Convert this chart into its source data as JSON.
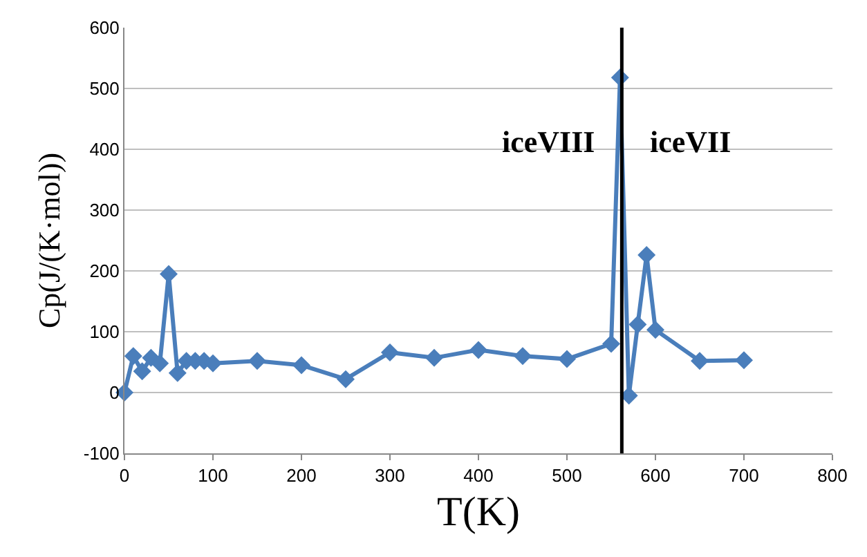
{
  "chart_data": {
    "type": "line",
    "xlabel": "T(K)",
    "ylabel": "Cp(J/(K·mol))",
    "x": [
      0,
      10,
      20,
      30,
      40,
      50,
      60,
      70,
      80,
      90,
      100,
      150,
      200,
      250,
      300,
      350,
      400,
      450,
      500,
      550,
      560,
      570,
      580,
      590,
      600,
      650,
      700
    ],
    "series": [
      {
        "color": "#4a7ebb",
        "values": [
          0,
          60,
          35,
          57,
          48,
          195,
          32,
          52,
          52,
          52,
          48,
          52,
          45,
          22,
          66,
          57,
          70,
          60,
          55,
          80,
          518,
          -5,
          112,
          226,
          103,
          52,
          53
        ]
      }
    ],
    "xlim": [
      0,
      800
    ],
    "xticks": [
      0,
      100,
      200,
      300,
      400,
      500,
      600,
      700,
      800
    ],
    "ylim": [
      -100,
      600
    ],
    "yticks": [
      -100,
      0,
      100,
      200,
      300,
      400,
      500,
      600
    ],
    "grid": "y",
    "marker": "diamond",
    "line_style": "solid",
    "ref_lines": [
      {
        "axis": "x",
        "value": 562,
        "color": "#000000"
      }
    ],
    "annotations": [
      "iceVIII",
      "iceVII"
    ]
  }
}
